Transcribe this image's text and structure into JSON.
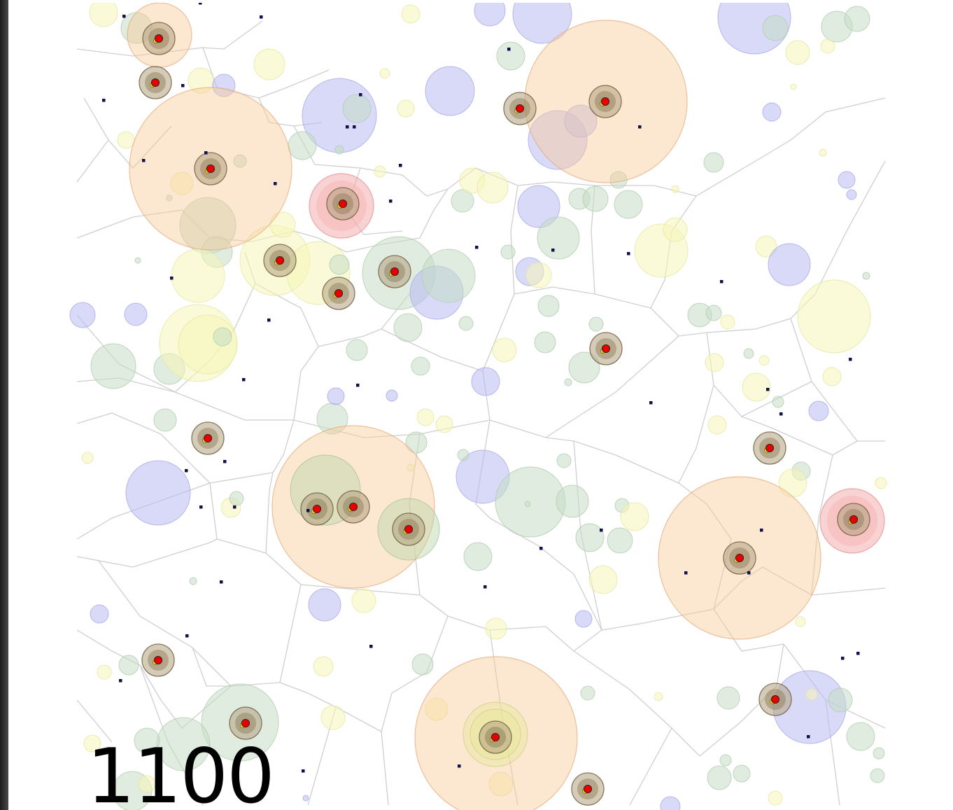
{
  "step_label": "1100",
  "colors": {
    "edge": "#cfcfcf",
    "frame_dark": "#1c1c1c",
    "background": "#ffffff",
    "resource_blue": "#b9b9f3",
    "resource_green": "#c4dcc4",
    "resource_yellow": "#f6f6b8",
    "territory_orange": "#f8c99a",
    "territory_pink": "#f4a7a7",
    "agent_body": "#b3a17f",
    "agent_core": "#e80000",
    "agent_head": "#f0d400",
    "particle": "#10104a"
  },
  "icons": {
    "agent": "red-dot-agent-icon",
    "particle": "dark-square-particle-icon"
  }
}
